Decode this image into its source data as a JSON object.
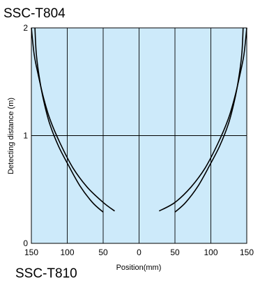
{
  "chart_data": {
    "type": "line",
    "title": "SSC-T804",
    "xlabel": "Position(mm)",
    "ylabel": "Detecting distance (m)",
    "xlim": [
      -150,
      150
    ],
    "ylim": [
      0,
      2
    ],
    "x_ticks": [
      -150,
      -100,
      -50,
      0,
      50,
      100,
      150
    ],
    "x_tick_labels": [
      "150",
      "100",
      "50",
      "0",
      "50",
      "100",
      "150"
    ],
    "y_ticks": [
      0,
      1,
      2
    ],
    "y_tick_labels": [
      "0",
      "1",
      "2"
    ],
    "grid": {
      "vertical": [
        -100,
        -50,
        0,
        50,
        100
      ],
      "horizontal": [
        1
      ]
    },
    "background_color": "#cdeafa",
    "line_color": "#000000",
    "series": [
      {
        "x": [
          -145,
          -143,
          -138,
          -132,
          -124,
          -112,
          -98,
          -82,
          -65,
          -50
        ],
        "y": [
          2.0,
          1.75,
          1.5,
          1.3,
          1.1,
          0.9,
          0.72,
          0.53,
          0.38,
          0.29
        ]
      },
      {
        "x": [
          -150,
          -146,
          -140,
          -133,
          -124,
          -110,
          -92,
          -72,
          -50,
          -34
        ],
        "y": [
          2.0,
          1.75,
          1.55,
          1.35,
          1.15,
          0.93,
          0.7,
          0.52,
          0.38,
          0.3
        ]
      },
      {
        "x": [
          145,
          143,
          138,
          132,
          124,
          112,
          98,
          82,
          65,
          50
        ],
        "y": [
          2.0,
          1.75,
          1.5,
          1.3,
          1.1,
          0.9,
          0.72,
          0.53,
          0.38,
          0.29
        ]
      },
      {
        "x": [
          150,
          146,
          140,
          133,
          124,
          110,
          92,
          72,
          50,
          28
        ],
        "y": [
          2.0,
          1.75,
          1.55,
          1.35,
          1.15,
          0.93,
          0.7,
          0.52,
          0.38,
          0.3
        ]
      }
    ]
  },
  "next_title": "SSC-T810"
}
